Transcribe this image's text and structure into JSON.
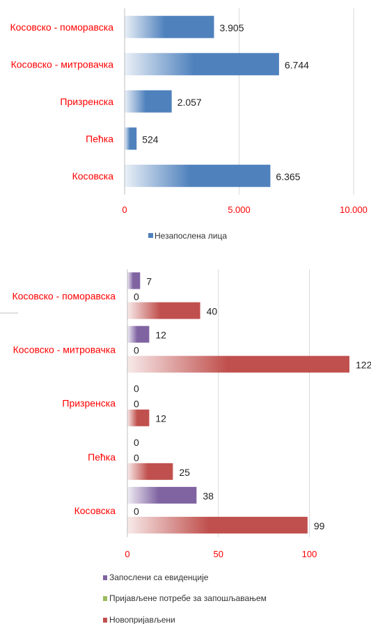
{
  "chart_data": [
    {
      "type": "bar",
      "orientation": "horizontal",
      "categories": [
        "Косовско - поморавска",
        "Косовско - митровачка",
        "Призренска",
        "Пећка",
        "Косовска"
      ],
      "series": [
        {
          "name": "Незапослена лица",
          "values": [
            3905,
            6744,
            2057,
            524,
            6365
          ],
          "color": "#4f81bd"
        }
      ],
      "value_labels": [
        "3.905",
        "6.744",
        "2.057",
        "524",
        "6.365"
      ],
      "xlim": [
        0,
        10000
      ],
      "xticks": [
        0,
        5000,
        10000
      ],
      "xtick_labels": [
        "0",
        "5.000",
        "10.000"
      ],
      "grid": true,
      "legend": "bottom"
    },
    {
      "type": "bar",
      "orientation": "horizontal",
      "categories": [
        "Косовско - поморавска",
        "Косовско - митровачка",
        "Призренска",
        "Пећка",
        "Косовска"
      ],
      "series": [
        {
          "name": "Запослени са евиденције",
          "values": [
            7,
            12,
            0,
            0,
            38
          ],
          "color": "#8064a2"
        },
        {
          "name": "Пријављене потребе за запошљавањем",
          "values": [
            0,
            0,
            0,
            0,
            0
          ],
          "color": "#9bbb59"
        },
        {
          "name": "Новопријављени",
          "values": [
            40,
            122,
            12,
            25,
            99
          ],
          "color": "#c0504d"
        }
      ],
      "value_labels": [
        [
          "7",
          "12",
          "0",
          "0",
          "38"
        ],
        [
          "0",
          "0",
          "0",
          "0",
          "0"
        ],
        [
          "40",
          "122",
          "12",
          "25",
          "99"
        ]
      ],
      "xlim": [
        0,
        122
      ],
      "xticks": [
        0,
        50,
        100
      ],
      "xtick_labels": [
        "0",
        "50",
        "100"
      ],
      "grid": true,
      "legend": "bottom"
    }
  ]
}
